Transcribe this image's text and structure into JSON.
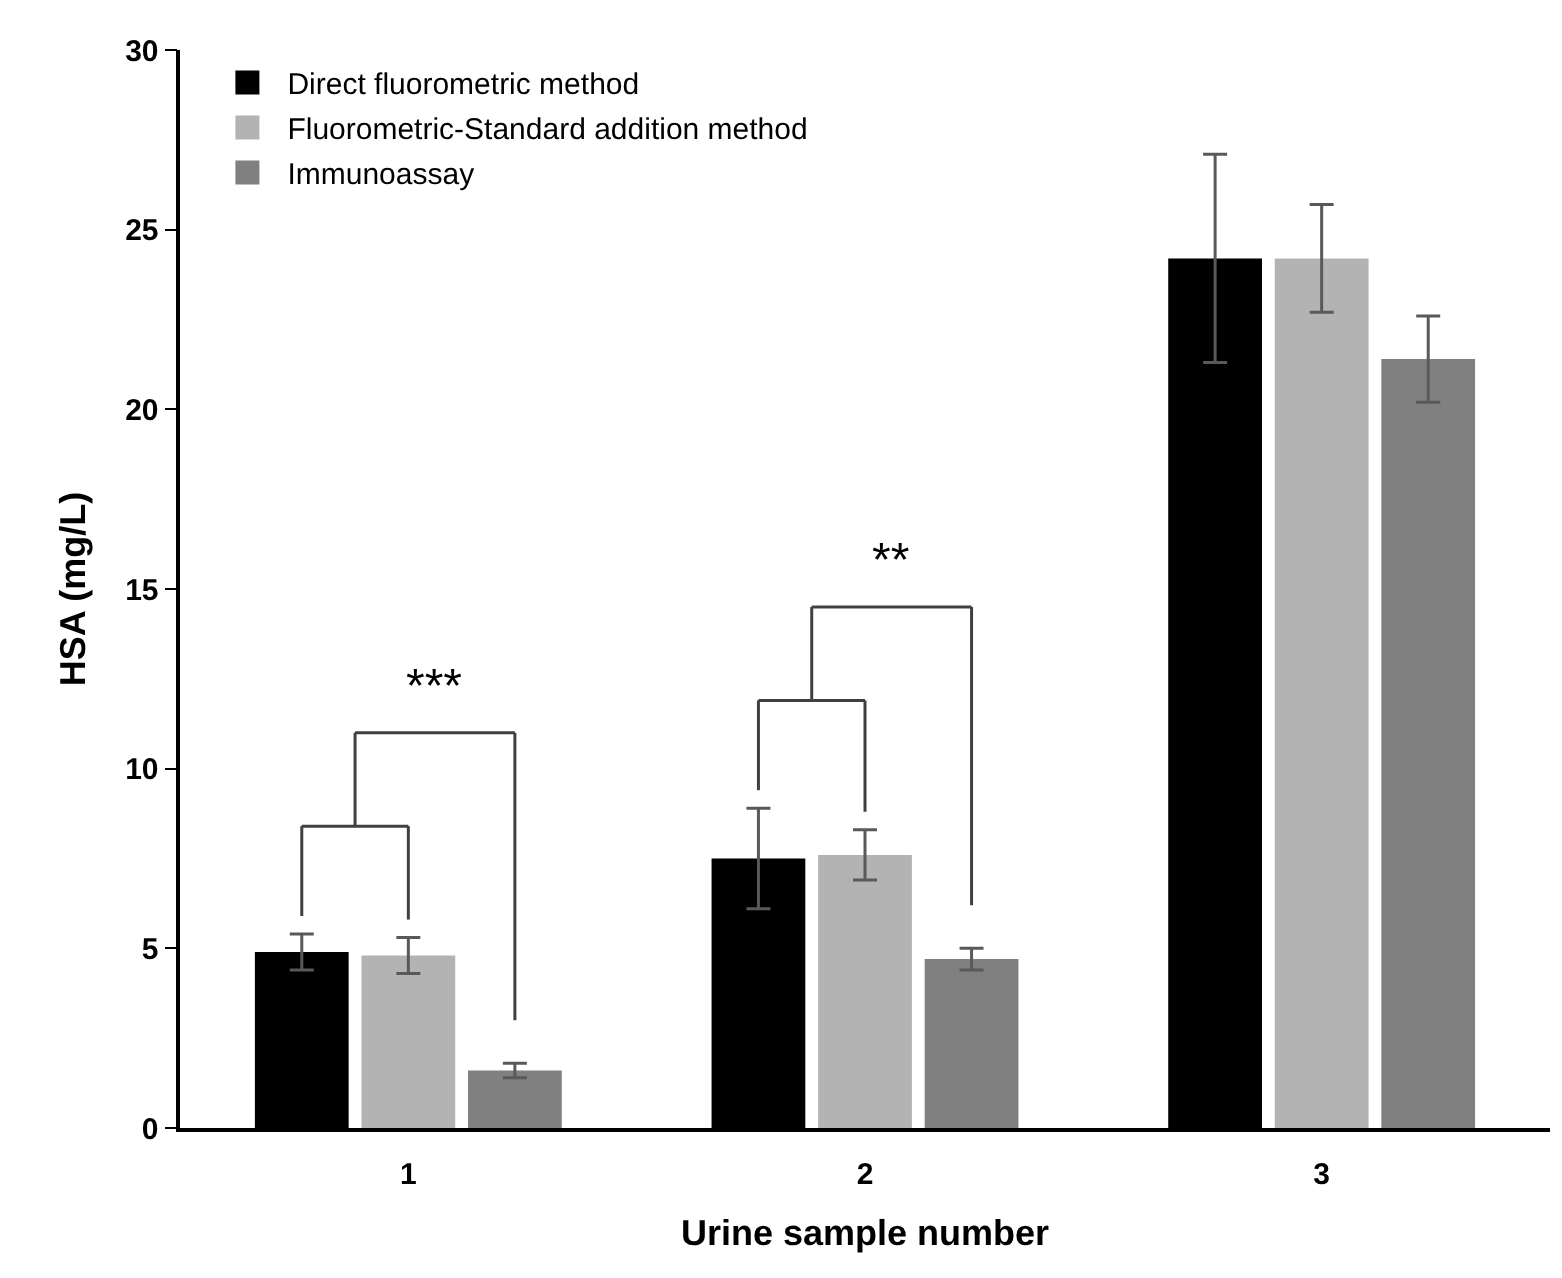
{
  "chart_data": {
    "type": "bar",
    "xlabel": "Urine sample number",
    "ylabel": "HSA (mg/L)",
    "categories": [
      "1",
      "2",
      "3"
    ],
    "series": [
      {
        "name": "Direct fluorometric method",
        "color": "#000000",
        "values": [
          4.9,
          7.5,
          24.2
        ],
        "errors": [
          0.5,
          1.4,
          2.9
        ]
      },
      {
        "name": "Fluorometric-Standard addition method",
        "color": "#b3b3b3",
        "values": [
          4.8,
          7.6,
          24.2
        ],
        "errors": [
          0.5,
          0.7,
          1.5
        ]
      },
      {
        "name": "Immunoassay",
        "color": "#808080",
        "values": [
          1.6,
          4.7,
          21.4
        ],
        "errors": [
          0.2,
          0.3,
          1.2
        ]
      }
    ],
    "ylim": [
      0,
      30
    ],
    "yticks": [
      0,
      5,
      10,
      15,
      20,
      25,
      30
    ],
    "legend": "top left",
    "annotations": [
      "***",
      "**"
    ]
  }
}
